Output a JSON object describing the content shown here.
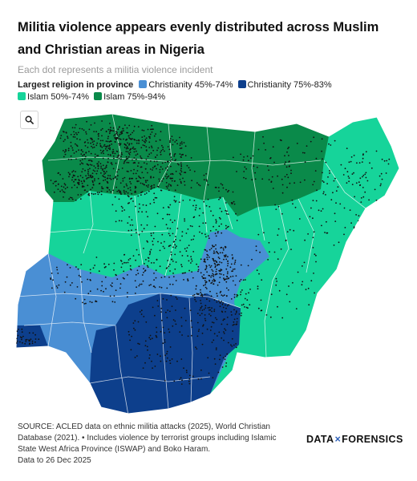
{
  "title": "Militia violence appears evenly distributed across Muslim and Christian areas in Nigeria",
  "subtitle": "Each dot represents a militia violence incident",
  "legend": {
    "title": "Largest religion in province",
    "items": [
      {
        "label": "Christianity 45%-74%",
        "color": "#4a8fd4"
      },
      {
        "label": "Christianity 75%-83%",
        "color": "#0d3f8c"
      },
      {
        "label": "Islam 50%-74%",
        "color": "#16d49a"
      },
      {
        "label": "Islam 75%-94%",
        "color": "#0a8a4a"
      }
    ]
  },
  "controls": {
    "search_icon": "search-icon"
  },
  "footer": {
    "line1": "SOURCE: ACLED data on ethnic militia attacks (2025), World Christian",
    "line2": "Database (2021). • Includes violence by terrorist groups including Islamic",
    "line3": "State West Africa Province (ISWAP) and Boko Haram.",
    "line4": "Data to 26 Dec 2025"
  },
  "brand": {
    "left": "DATA",
    "separator": "×",
    "right": "FORENSICS"
  },
  "colors": {
    "dot": "#111111",
    "border": "#ffffff"
  }
}
